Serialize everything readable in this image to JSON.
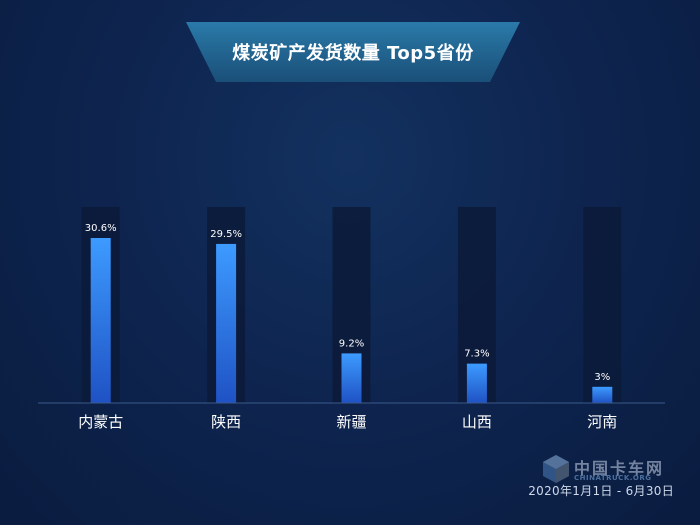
{
  "title": "煤炭矿产发货数量 Top5省份",
  "footer": "2020年1月1日 - 6月30日",
  "watermark": {
    "cn": "中国卡车网",
    "en": "CHINATRUCK.ORG"
  },
  "colors": {
    "bar_top": "#3d9bff",
    "bar_bottom": "#1f52c4",
    "track": "#0c1a38",
    "axis": "#3a5a8a",
    "banner": "#1e5d86"
  },
  "chart_data": {
    "type": "bar",
    "title": "煤炭矿产发货数量 Top5省份",
    "categories": [
      "内蒙古",
      "陕西",
      "新疆",
      "山西",
      "河南"
    ],
    "values": [
      30.6,
      29.5,
      9.2,
      7.3,
      3
    ],
    "labels": [
      "30.6%",
      "29.5%",
      "9.2%",
      "7.3%",
      "3%"
    ],
    "unit": "%",
    "ylim": [
      0,
      36
    ],
    "grid": false,
    "legend": "none"
  }
}
